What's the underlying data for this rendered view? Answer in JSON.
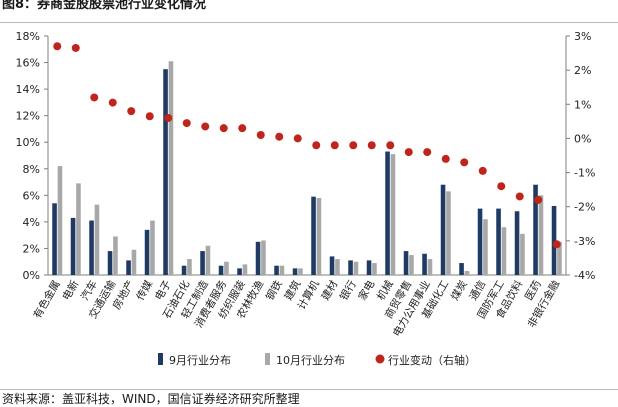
{
  "header": {
    "title": "图8：券商金股股票池行业变化情况"
  },
  "footer": {
    "source": "资料来源：盖亚科技，WIND，国信证券经济研究所整理"
  },
  "colors": {
    "sep_bar": "#1f3b64",
    "oct_bar": "#a8a8a8",
    "change_dot": "#c0251c"
  },
  "chart_data": {
    "type": "bar",
    "title": "",
    "categories": [
      "有色金属",
      "电新",
      "汽车",
      "交通运输",
      "房地产",
      "传媒",
      "电子",
      "石油石化",
      "轻工制造",
      "消费者服务",
      "纺织服装",
      "农林牧渔",
      "钢铁",
      "建筑",
      "计算机",
      "建材",
      "银行",
      "家电",
      "机械",
      "商贸零售",
      "电力公用事业",
      "基础化工",
      "煤炭",
      "通信",
      "国防军工",
      "食品饮料",
      "医药",
      "非银行金融"
    ],
    "series": [
      {
        "name": "9月行业分布",
        "axis": "left",
        "render": "bar",
        "values": [
          5.4,
          4.3,
          4.1,
          1.8,
          1.1,
          3.4,
          15.5,
          0.7,
          1.8,
          0.7,
          0.5,
          2.5,
          0.7,
          0.5,
          5.9,
          1.4,
          1.1,
          1.1,
          9.3,
          1.8,
          1.6,
          6.8,
          0.9,
          5.0,
          5.0,
          4.8,
          6.8,
          5.2
        ]
      },
      {
        "name": "10月行业分布",
        "axis": "left",
        "render": "bar",
        "values": [
          8.2,
          6.9,
          5.3,
          2.9,
          1.9,
          4.1,
          16.1,
          1.2,
          2.2,
          1.0,
          0.8,
          2.6,
          0.7,
          0.5,
          5.8,
          1.2,
          1.0,
          0.9,
          9.1,
          1.5,
          1.2,
          6.3,
          0.3,
          4.2,
          3.6,
          3.1,
          6.0,
          2.5
        ]
      },
      {
        "name": "行业变动（右轴）",
        "axis": "right",
        "render": "dot",
        "values": [
          2.7,
          2.65,
          1.2,
          1.05,
          0.8,
          0.65,
          0.6,
          0.45,
          0.35,
          0.3,
          0.3,
          0.1,
          0.05,
          0.0,
          -0.2,
          -0.2,
          -0.2,
          -0.2,
          -0.2,
          -0.4,
          -0.4,
          -0.6,
          -0.7,
          -0.95,
          -1.4,
          -1.7,
          -1.8,
          -3.1
        ]
      }
    ],
    "y_left": {
      "min": 0,
      "max": 18,
      "ticks": [
        0,
        2,
        4,
        6,
        8,
        10,
        12,
        14,
        16,
        18
      ],
      "unit": "%"
    },
    "y_right": {
      "min": -4,
      "max": 3,
      "ticks": [
        -4,
        -3,
        -2,
        -1,
        0,
        1,
        2,
        3
      ],
      "unit": "%"
    },
    "grid": false,
    "legend_position": "bottom"
  }
}
